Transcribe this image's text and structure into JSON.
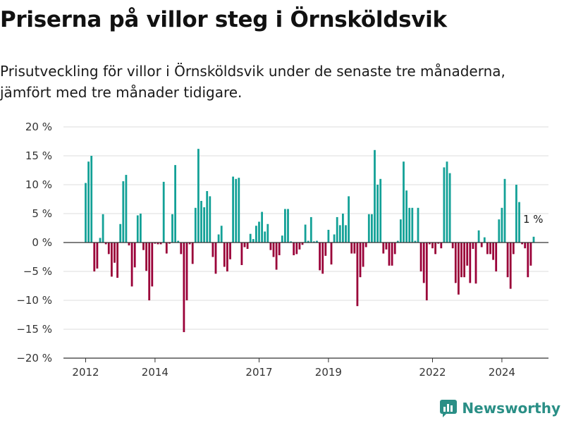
{
  "header": {
    "title": "Priserna på villor steg i Örnsköldsvik",
    "subtitle": "Prisutveckling för villor i Örnsköldsvik under de senaste tre månaderna, jämfört med tre månader tidigare."
  },
  "brand": {
    "name": "Newsworthy",
    "icon": "newsworthy-logo-icon"
  },
  "colors": {
    "positive": "#13a197",
    "negative": "#9a0038",
    "grid": "#dddddd",
    "zero": "#333333"
  },
  "chart_data": {
    "type": "bar",
    "title": "",
    "xlabel": "",
    "ylabel": "",
    "ylim": [
      -20,
      20
    ],
    "yticks": [
      20,
      15,
      10,
      5,
      0,
      -5,
      -10,
      -15,
      -20
    ],
    "ytick_labels": [
      "20 %",
      "15 %",
      "10 %",
      "5 %",
      "0 %",
      "−5 %",
      "−10 %",
      "−15 %",
      "−20 %"
    ],
    "xtick_labels": [
      "2012",
      "2014",
      "2017",
      "2019",
      "2022",
      "2024"
    ],
    "xtick_positions": [
      0,
      24,
      60,
      84,
      120,
      144
    ],
    "grid": true,
    "start": "2012-01",
    "frequency": "monthly",
    "unit": "%",
    "annotation": "1 %",
    "values": [
      10.3,
      14,
      15,
      -5,
      -4.5,
      0.8,
      4.9,
      -0.3,
      -2,
      -5.9,
      -3.5,
      -6.1,
      3.2,
      10.6,
      11.7,
      -0.5,
      -7.6,
      -4.3,
      4.7,
      5,
      -1.3,
      -4.9,
      -10,
      -7.6,
      -0.2,
      -0.3,
      -0.3,
      10.5,
      -1.9,
      -0.2,
      4.9,
      13.4,
      0.3,
      -2,
      -15.5,
      -10,
      -0.3,
      -3.7,
      6,
      16.2,
      7.2,
      6.1,
      8.9,
      8,
      -2.5,
      -5.4,
      1.4,
      2.9,
      -4.2,
      -5,
      -2.9,
      11.4,
      11,
      11.2,
      -3.9,
      -0.8,
      -1.1,
      1.5,
      0.6,
      2.9,
      3.6,
      5.3,
      1.9,
      3.2,
      -1.3,
      -2.5,
      -4.7,
      -2.2,
      1.2,
      5.8,
      5.8,
      0.2,
      -2.2,
      -2,
      -1.2,
      -0.4,
      3.1,
      0.3,
      4.4,
      0.2,
      0.3,
      -4.8,
      -5.4,
      -2.3,
      2.2,
      -3.8,
      1.4,
      4.4,
      3,
      5,
      3,
      8,
      -1.9,
      -1.9,
      -11,
      -6,
      -4.2,
      -0.8,
      4.9,
      4.9,
      16,
      10,
      11,
      -1.9,
      -1.2,
      -4,
      -4,
      -2,
      0.3,
      4,
      14,
      9,
      6,
      6,
      0.3,
      6,
      -5,
      -7,
      -10,
      -0.3,
      -1,
      -2,
      -0.2,
      -1,
      13,
      14,
      12,
      -1,
      -7,
      -9,
      -6,
      -6,
      -4,
      -7,
      -1.1,
      -7.1,
      2.1,
      -0.8,
      0.9,
      -2,
      -2,
      -3,
      -5,
      4,
      6,
      11,
      -6,
      -8,
      -2,
      10,
      7,
      -0.3,
      -1,
      -6,
      -4,
      1
    ]
  }
}
